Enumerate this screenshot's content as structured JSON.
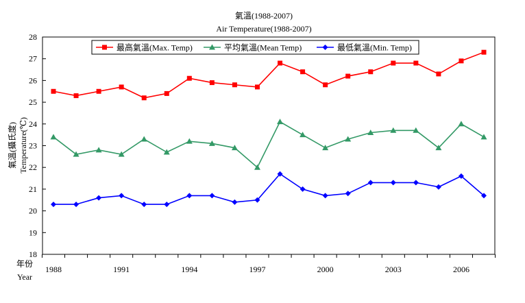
{
  "chart_data": {
    "type": "line",
    "title": "氣溫(1988-2007)",
    "subtitle": "Air Temperature(1988-2007)",
    "ylabel_zh": "氣溫(攝氏度)",
    "ylabel_en": "Temperature(℃)",
    "xlabel_zh": "年份",
    "xlabel_en": "Year",
    "ylim": [
      18,
      28
    ],
    "yticks": [
      18,
      19,
      20,
      21,
      22,
      23,
      24,
      25,
      26,
      27,
      28
    ],
    "x": [
      1988,
      1989,
      1990,
      1991,
      1992,
      1993,
      1994,
      1995,
      1996,
      1997,
      1998,
      1999,
      2000,
      2001,
      2002,
      2003,
      2004,
      2005,
      2006,
      2007
    ],
    "xtick_labels": [
      "1988",
      "1991",
      "1994",
      "1997",
      "2000",
      "2003",
      "2006"
    ],
    "grid": false,
    "legend_position": "top",
    "series": [
      {
        "name": "最高氣溫(Max. Temp)",
        "color": "#ff0000",
        "marker": "square",
        "values": [
          25.5,
          25.3,
          25.5,
          25.7,
          25.2,
          25.4,
          26.1,
          25.9,
          25.8,
          25.7,
          26.8,
          26.4,
          25.8,
          26.2,
          26.4,
          26.8,
          26.8,
          26.3,
          26.9,
          27.3
        ]
      },
      {
        "name": "平均氣溫(Mean Temp)",
        "color": "#339966",
        "marker": "triangle",
        "values": [
          23.4,
          22.6,
          22.8,
          22.6,
          23.3,
          22.7,
          23.2,
          23.1,
          22.9,
          22.0,
          24.1,
          23.5,
          22.9,
          23.3,
          23.6,
          23.7,
          23.7,
          22.9,
          24.0,
          23.4
        ]
      },
      {
        "name": "最低氣溫(Min. Temp)",
        "color": "#0000ff",
        "marker": "diamond",
        "values": [
          20.3,
          20.3,
          20.6,
          20.7,
          20.3,
          20.3,
          20.7,
          20.7,
          20.4,
          20.5,
          21.7,
          21.0,
          20.7,
          20.8,
          21.3,
          21.3,
          21.3,
          21.1,
          21.6,
          20.7
        ]
      }
    ]
  }
}
